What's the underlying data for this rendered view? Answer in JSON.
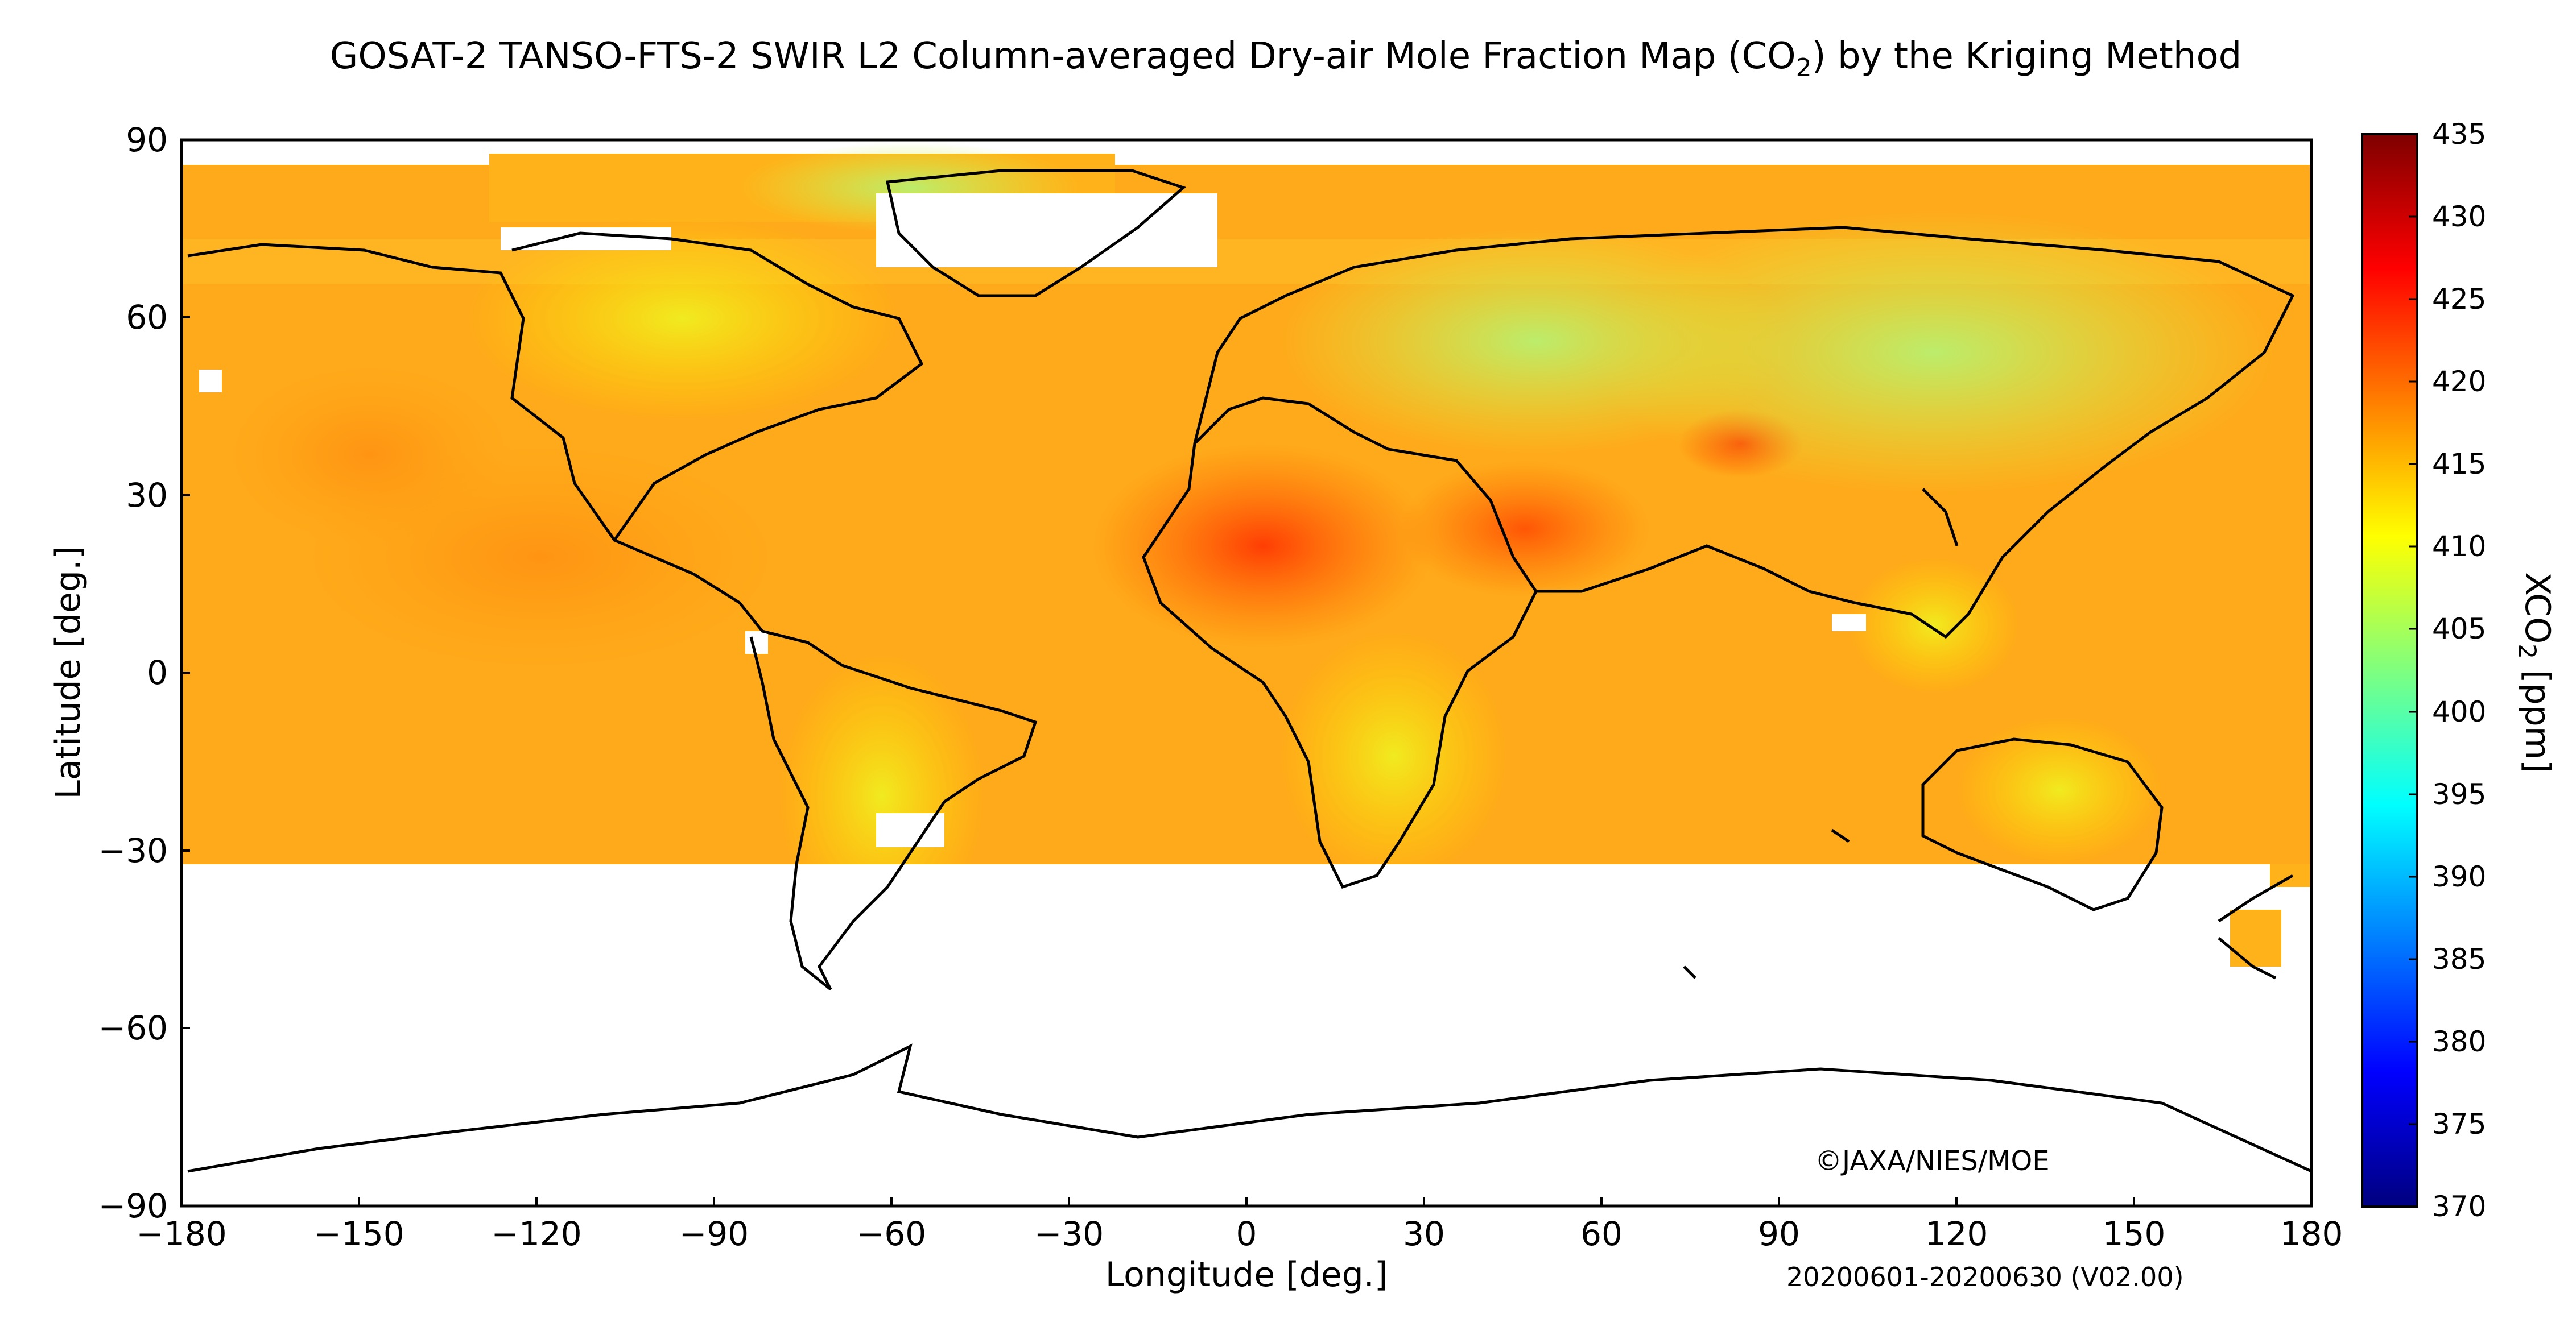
{
  "title": {
    "prefix": "GOSAT-2 TANSO-FTS-2 SWIR L2 Column-averaged Dry-air Mole Fraction Map (CO",
    "subscript": "2",
    "suffix": ") by the Kriging Method"
  },
  "credit": "©JAXA/NIES/MOE",
  "period": "20200601-20200630 (V02.00)",
  "axes": {
    "xlabel": "Longitude [deg.]",
    "ylabel": "Latitude [deg.]",
    "x_ticks": [
      "−180",
      "−150",
      "−120",
      "−90",
      "−60",
      "−30",
      "0",
      "30",
      "60",
      "90",
      "120",
      "150",
      "180"
    ],
    "y_ticks": [
      "90",
      "60",
      "30",
      "0",
      "−30",
      "−60",
      "−90"
    ]
  },
  "colorbar": {
    "label_prefix": "XCO",
    "label_subscript": "2",
    "label_suffix": " [ppm]",
    "ticks": [
      "435",
      "430",
      "425",
      "420",
      "415",
      "410",
      "405",
      "400",
      "395",
      "390",
      "385",
      "380",
      "375",
      "370"
    ],
    "colors": [
      "#00007f",
      "#0000ff",
      "#007fff",
      "#00ffff",
      "#7fff7f",
      "#ffff00",
      "#ff7f00",
      "#ff0000",
      "#7f0000"
    ]
  },
  "chart_data": {
    "type": "heatmap",
    "title": "GOSAT-2 TANSO-FTS-2 SWIR L2 Column-averaged Dry-air Mole Fraction Map (CO2) by the Kriging Method",
    "xlabel": "Longitude [deg.]",
    "ylabel": "Latitude [deg.]",
    "xlim": [
      -180,
      180
    ],
    "ylim": [
      -90,
      90
    ],
    "color_range": [
      370,
      435
    ],
    "units": "ppm",
    "data_coverage_lat": [
      -33,
      87
    ],
    "regions": [
      {
        "lon": [
          -20,
          30
        ],
        "lat": [
          5,
          30
        ],
        "xco2": 421
      },
      {
        "lon": [
          35,
          60
        ],
        "lat": [
          12,
          28
        ],
        "xco2": 420
      },
      {
        "lon": [
          75,
          90
        ],
        "lat": [
          34,
          42
        ],
        "xco2": 421
      },
      {
        "lon": [
          -180,
          -60
        ],
        "lat": [
          -33,
          45
        ],
        "xco2": 416
      },
      {
        "lon": [
          -60,
          40
        ],
        "lat": [
          -33,
          0
        ],
        "xco2": 415
      },
      {
        "lon": [
          60,
          180
        ],
        "lat": [
          -33,
          30
        ],
        "xco2": 415
      },
      {
        "lon": [
          -130,
          -60
        ],
        "lat": [
          45,
          72
        ],
        "xco2": 411
      },
      {
        "lon": [
          -60,
          -20
        ],
        "lat": [
          72,
          85
        ],
        "xco2": 411
      },
      {
        "lon": [
          20,
          140
        ],
        "lat": [
          45,
          80
        ],
        "xco2": 408
      },
      {
        "lon": [
          -75,
          -40
        ],
        "lat": [
          -33,
          -5
        ],
        "xco2": 412
      },
      {
        "lon": [
          10,
          40
        ],
        "lat": [
          -30,
          -5
        ],
        "xco2": 412
      }
    ]
  }
}
